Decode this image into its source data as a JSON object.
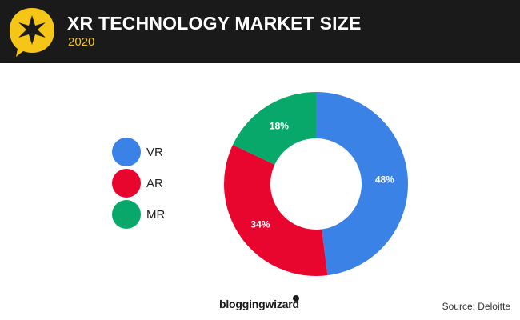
{
  "header": {
    "title": "XR TECHNOLOGY MARKET SIZE",
    "subtitle": "2020",
    "badge_icon": "star-speech-bubble-icon"
  },
  "colors": {
    "header_bg": "#1a1a1a",
    "accent_yellow": "#f5c518",
    "vr": "#3b82e6",
    "ar": "#e8062f",
    "mr": "#08a86b"
  },
  "chart_data": {
    "type": "pie",
    "donut": true,
    "title": "XR TECHNOLOGY MARKET SIZE",
    "subtitle": "2020",
    "legend_position": "left",
    "series": [
      {
        "name": "VR",
        "value": 48,
        "label": "48%",
        "color": "#3b82e6"
      },
      {
        "name": "AR",
        "value": 34,
        "label": "34%",
        "color": "#e8062f"
      },
      {
        "name": "MR",
        "value": 18,
        "label": "18%",
        "color": "#08a86b"
      }
    ]
  },
  "footer": {
    "brand": "bloggingwizard",
    "source": "Source: Deloitte"
  }
}
